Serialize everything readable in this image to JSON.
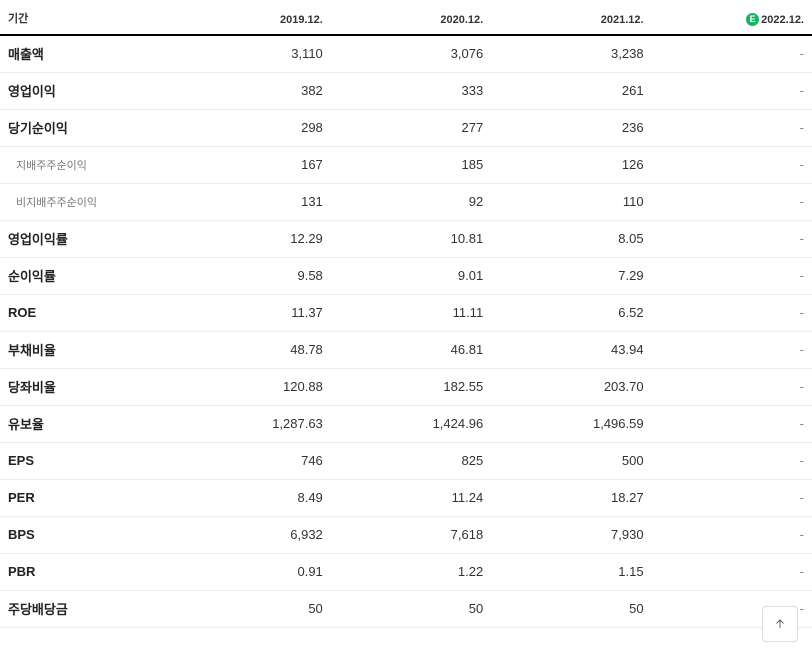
{
  "header": {
    "period_label": "기간",
    "columns": [
      "2019.12.",
      "2020.12.",
      "2021.12.",
      "2022.12."
    ],
    "last_is_estimate": true,
    "estimate_badge": "E"
  },
  "rows": [
    {
      "label": "매출액",
      "sub": false,
      "values": [
        "3,110",
        "3,076",
        "3,238",
        "-"
      ]
    },
    {
      "label": "영업이익",
      "sub": false,
      "values": [
        "382",
        "333",
        "261",
        "-"
      ]
    },
    {
      "label": "당기순이익",
      "sub": false,
      "values": [
        "298",
        "277",
        "236",
        "-"
      ]
    },
    {
      "label": "지배주주순이익",
      "sub": true,
      "values": [
        "167",
        "185",
        "126",
        "-"
      ]
    },
    {
      "label": "비지배주주순이익",
      "sub": true,
      "values": [
        "131",
        "92",
        "110",
        "-"
      ]
    },
    {
      "label": "영업이익률",
      "sub": false,
      "values": [
        "12.29",
        "10.81",
        "8.05",
        "-"
      ]
    },
    {
      "label": "순이익률",
      "sub": false,
      "values": [
        "9.58",
        "9.01",
        "7.29",
        "-"
      ]
    },
    {
      "label": "ROE",
      "sub": false,
      "values": [
        "11.37",
        "11.11",
        "6.52",
        "-"
      ]
    },
    {
      "label": "부채비율",
      "sub": false,
      "values": [
        "48.78",
        "46.81",
        "43.94",
        "-"
      ]
    },
    {
      "label": "당좌비율",
      "sub": false,
      "values": [
        "120.88",
        "182.55",
        "203.70",
        "-"
      ]
    },
    {
      "label": "유보율",
      "sub": false,
      "values": [
        "1,287.63",
        "1,424.96",
        "1,496.59",
        "-"
      ]
    },
    {
      "label": "EPS",
      "sub": false,
      "values": [
        "746",
        "825",
        "500",
        "-"
      ]
    },
    {
      "label": "PER",
      "sub": false,
      "values": [
        "8.49",
        "11.24",
        "18.27",
        "-"
      ]
    },
    {
      "label": "BPS",
      "sub": false,
      "values": [
        "6,932",
        "7,618",
        "7,930",
        "-"
      ]
    },
    {
      "label": "PBR",
      "sub": false,
      "values": [
        "0.91",
        "1.22",
        "1.15",
        "-"
      ]
    },
    {
      "label": "주당배당금",
      "sub": false,
      "values": [
        "50",
        "50",
        "50",
        "-"
      ]
    }
  ],
  "scroll_top_button": {
    "title": "맨 위로"
  }
}
